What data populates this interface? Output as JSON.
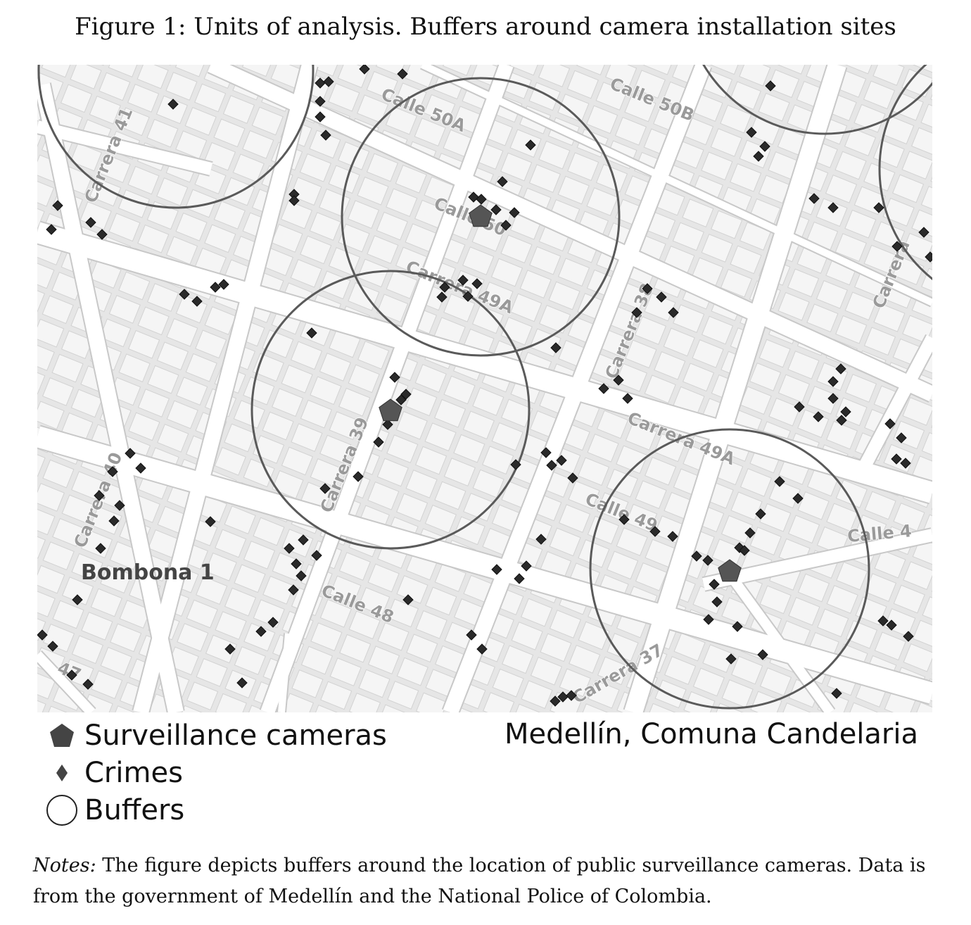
{
  "figure": {
    "title": "Figure 1: Units of analysis. Buffers around camera installation sites"
  },
  "map": {
    "street_labels": [
      "Calle 50A",
      "Calle 50B",
      "Carrera 41",
      "Calle 50",
      "Carrera 49A",
      "Carrera 38",
      "Carrera 40",
      "Carrera 39",
      "Carrera 49A",
      "Calle 49",
      "Calle 48",
      "Carrera 37",
      "Carrera",
      "Calle 4",
      "47"
    ],
    "area_label": "Bombona 1",
    "camera_count": 3,
    "buffer_count": 6,
    "colors": {
      "background": "#e9e9e9",
      "roads": "#ffffff",
      "buildings": "#f6f6f6",
      "buffers": "#5a5a5a",
      "markers": "#222222"
    }
  },
  "legend": {
    "items": [
      {
        "icon": "pentagon-icon",
        "label": "Surveillance cameras"
      },
      {
        "icon": "diamond-icon",
        "label": "Crimes"
      },
      {
        "icon": "circle-icon",
        "label": "Buffers"
      }
    ],
    "place": "Medellín, Comuna Candelaria"
  },
  "notes": {
    "label": "Notes:",
    "text": "The figure depicts buffers around the location of public surveillance cameras. Data is from the government of Medellín and the National Police of Colombia."
  }
}
